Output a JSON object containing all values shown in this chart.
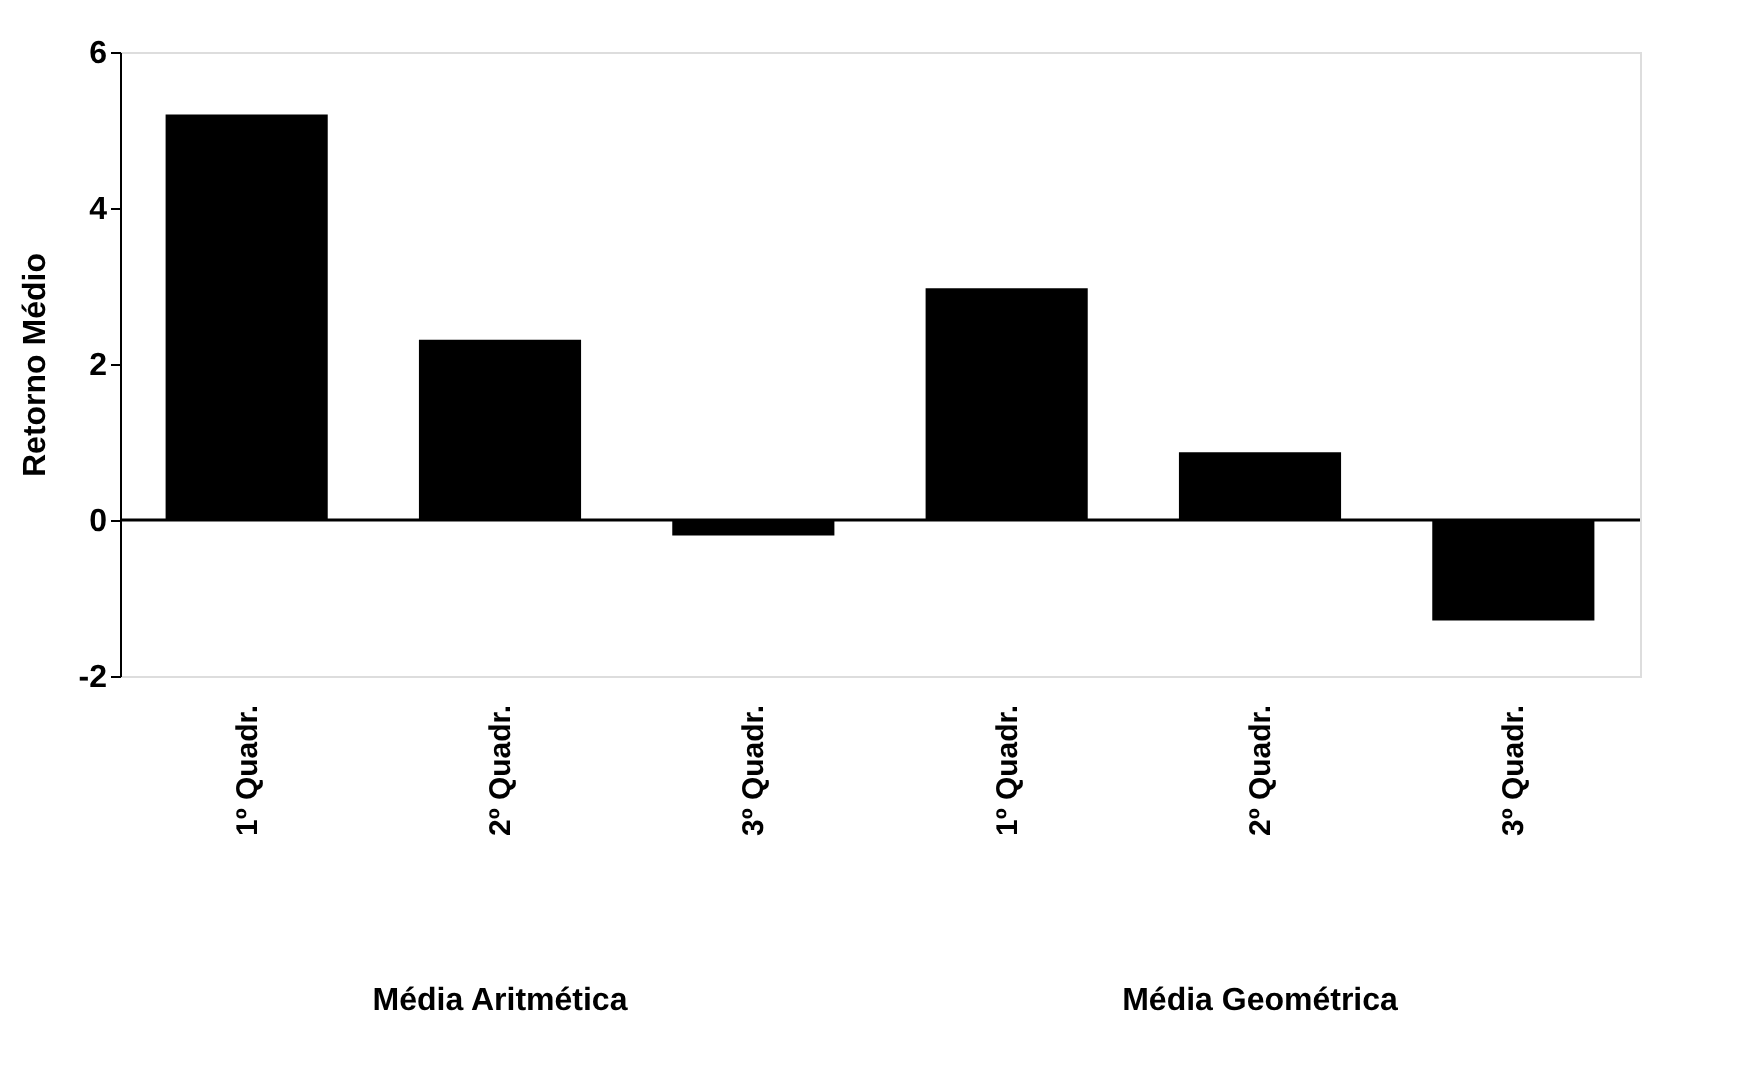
{
  "chart_data": {
    "type": "bar",
    "ylabel": "Retorno Médio",
    "categories": [
      "1º Quadr.",
      "2º Quadr.",
      "3º Quadr.",
      "1º Quadr.",
      "2º Quadr.",
      "3º Quadr."
    ],
    "values": [
      5.2,
      2.31,
      -0.2,
      2.97,
      0.87,
      -1.29
    ],
    "color": "#000000",
    "ylim": [
      -2,
      6
    ],
    "yticks": [
      -2,
      0,
      2,
      4,
      6
    ],
    "grid": false,
    "ref_lines": [
      {
        "axis": "y",
        "value": 0,
        "color": "#000000"
      }
    ],
    "annotations": [
      "Média Aritmética",
      "Média Geométrica"
    ]
  }
}
